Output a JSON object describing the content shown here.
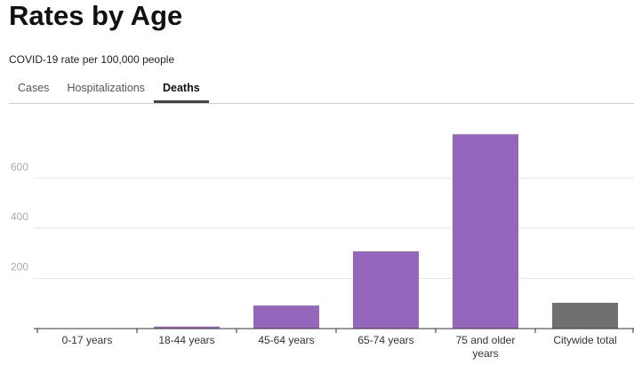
{
  "chart_data": {
    "type": "bar",
    "title": "Rates by Age",
    "subtitle": "COVID-19 rate per 100,000 people",
    "categories": [
      "0-17 years",
      "18-44 years",
      "45-64 years",
      "65-74 years",
      "75 and older years",
      "Citywide total"
    ],
    "values": [
      1,
      8,
      92,
      308,
      775,
      103
    ],
    "colors": [
      "#9467bd",
      "#9467bd",
      "#9467bd",
      "#9467bd",
      "#9467bd",
      "#707070"
    ],
    "ylim": [
      0,
      850
    ],
    "yticks": [
      200,
      400,
      600
    ],
    "grid": true
  },
  "tabs": {
    "items": [
      "Cases",
      "Hospitalizations",
      "Deaths"
    ],
    "active": 2
  }
}
